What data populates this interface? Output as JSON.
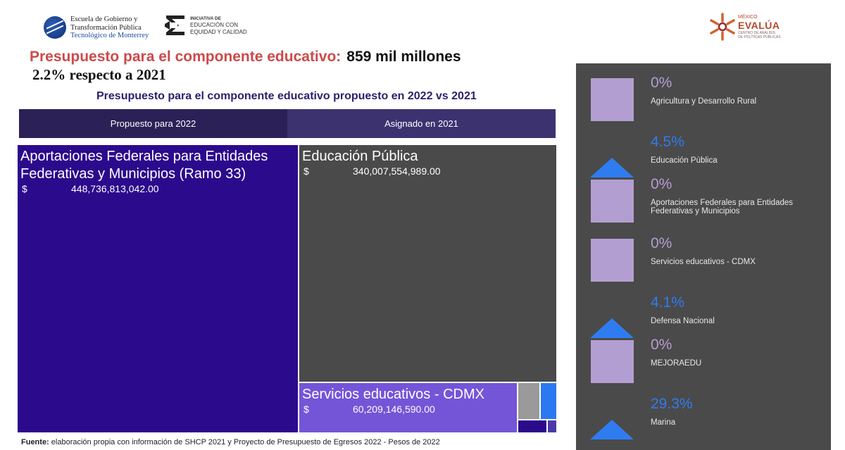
{
  "logos": {
    "tec": {
      "line1": "Escuela de Gobierno y",
      "line2": "Transformación Pública",
      "line3": "Tecnológico de Monterrey"
    },
    "ie": {
      "line1": "INICIATIVA DE",
      "line2": "EDUCACIÓN CON",
      "line3": "EQUIDAD Y CALIDAD"
    },
    "evalua": {
      "top": "MÉXICO",
      "name": "EVALÚA",
      "sub1": "CENTRO DE ANÁLISIS",
      "sub2": "DE POLÍTICAS PÚBLICAS"
    }
  },
  "header": {
    "headline_label": "Presupuesto para el componente  educativo:",
    "headline_value": "859 mil millones",
    "subheadline": "2.2% respecto a 2021",
    "chart_title": "Presupuesto para el componente educativo propuesto en  2022 vs 2021"
  },
  "tabs": [
    {
      "label": "Propuesto para 2022"
    },
    {
      "label": "Asignado en 2021"
    }
  ],
  "treemap": {
    "currency_symbol": "$",
    "tiles": [
      {
        "title": "Aportaciones Federales para Entidades Federativas y Municipios (Ramo 33)",
        "value": "448,736,813,042.00",
        "color": "#2c0a8c"
      },
      {
        "title": "Educación Pública",
        "value": "340,007,554,989.00",
        "color": "#4a4a4a"
      },
      {
        "title": "Servicios educativos - CDMX",
        "value": "60,209,146,590.00",
        "color": "#7455d8"
      }
    ]
  },
  "kpis": [
    {
      "pct": "0%",
      "label": "Agricultura y Desarrollo Rural",
      "icon": "square-icon"
    },
    {
      "pct": "4.5%",
      "label": "Educación Pública",
      "icon": "up-triangle-icon"
    },
    {
      "pct": "0%",
      "label": "Aportaciones Federales para Entidades Federativas y Municipios",
      "icon": "square-icon"
    },
    {
      "pct": "0%",
      "label": "Servicios educativos - CDMX",
      "icon": "square-icon"
    },
    {
      "pct": "4.1%",
      "label": "Defensa Nacional",
      "icon": "up-triangle-icon"
    },
    {
      "pct": "0%",
      "label": "MEJORAEDU",
      "icon": "square-icon"
    },
    {
      "pct": "29.3%",
      "label": "Marina",
      "icon": "up-triangle-icon"
    }
  ],
  "footer": {
    "label": "Fuente:",
    "text": " elaboración propia con información de SHCP 2021 y Proyecto de Presupuesto de Egresos 2022 - Pesos de 2022"
  },
  "colors": {
    "accent_red": "#cc4a4a",
    "title_purple": "#2d1f6e",
    "increase_blue": "#2f7cf0",
    "neutral_square": "#b39ed1",
    "panel_bg": "#4a4a4a"
  }
}
